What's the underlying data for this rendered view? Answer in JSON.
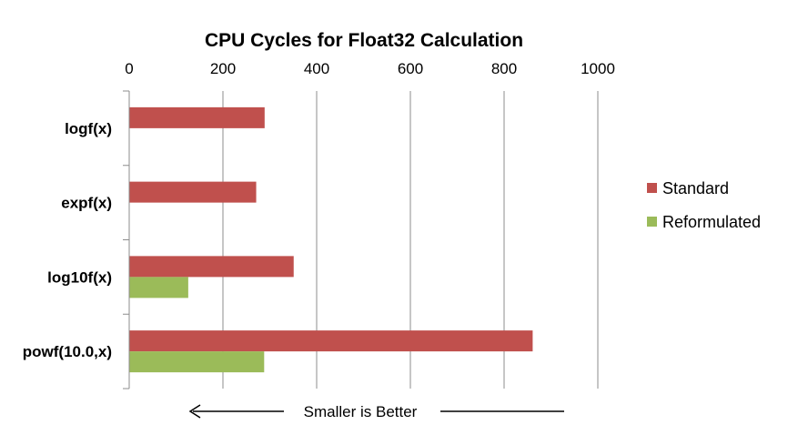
{
  "chart_data": {
    "type": "bar",
    "orientation": "horizontal",
    "title": "CPU Cycles for Float32 Calculation",
    "categories": [
      "logf(x)",
      "expf(x)",
      "log10f(x)",
      "powf(10.0,x)"
    ],
    "series": [
      {
        "name": "Standard",
        "color": "#c0504d",
        "values": [
          288,
          270,
          350,
          860
        ]
      },
      {
        "name": "Reformulated",
        "color": "#9bbb59",
        "values": [
          null,
          null,
          125,
          287
        ]
      }
    ],
    "xlim": [
      0,
      1000
    ],
    "x_ticks": [
      "0",
      "200",
      "400",
      "600",
      "800",
      "1000"
    ],
    "x_axis_position": "top",
    "grid": true,
    "legend_position": "right",
    "annotation": "Smaller is Better"
  }
}
